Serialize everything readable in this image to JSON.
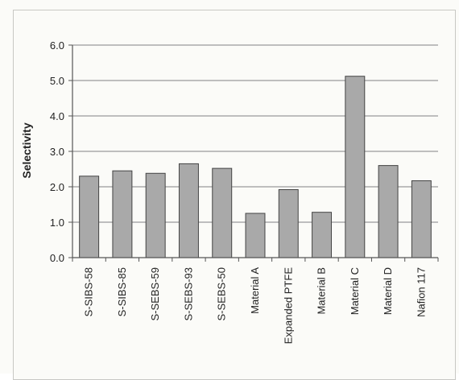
{
  "chart_data": {
    "type": "bar",
    "ylabel": "Selectivity",
    "xlabel": "",
    "title": "",
    "ylim": [
      0,
      6
    ],
    "yticks": [
      "0.0",
      "1.0",
      "2.0",
      "3.0",
      "4.0",
      "5.0",
      "6.0"
    ],
    "grid": true,
    "categories": [
      "S-SIBS-58",
      "S-SIBS-85",
      "S-SEBS-59",
      "S-SEBS-93",
      "S-SEBS-50",
      "Material A",
      "Expanded PTFE",
      "Material B",
      "Material C",
      "Material D",
      "Nafion 117"
    ],
    "values": [
      2.3,
      2.45,
      2.38,
      2.65,
      2.52,
      1.25,
      1.92,
      1.28,
      5.12,
      2.6,
      2.17
    ],
    "colors": {
      "bar": "#a9a9a9",
      "bar_edge": "#444444",
      "grid": "#9a9a9a",
      "axis": "#555555"
    }
  }
}
